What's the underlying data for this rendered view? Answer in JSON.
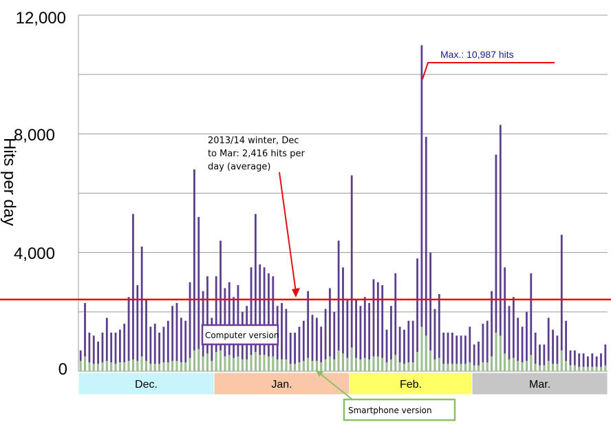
{
  "chart_data": {
    "type": "bar",
    "ylabel": "Hits per day",
    "ylim": [
      0,
      12000
    ],
    "y_ticks": [
      {
        "value": 0,
        "label": "0"
      },
      {
        "value": 4000,
        "label": "4,000"
      },
      {
        "value": 8000,
        "label": "8,000"
      },
      {
        "value": 12000,
        "label": "12,000"
      }
    ],
    "grid": true,
    "months": [
      "Dec.",
      "Jan.",
      "Feb.",
      "Mar."
    ],
    "month_days": [
      31,
      31,
      28,
      31
    ],
    "month_colors": [
      "#c8f4fb",
      "#f9c8a8",
      "#ffff66",
      "#c6c6c6"
    ],
    "series": [
      {
        "name": "Computer version",
        "color": "#5b3f8c",
        "values": [
          700,
          2300,
          1300,
          1200,
          1000,
          1300,
          1800,
          1300,
          1300,
          1400,
          1600,
          2500,
          5300,
          2900,
          4200,
          2400,
          1500,
          1600,
          1300,
          1500,
          1700,
          2200,
          2300,
          1800,
          1700,
          3000,
          6800,
          5200,
          2700,
          3200,
          1800,
          3200,
          4400,
          2800,
          3000,
          2500,
          2900,
          2000,
          2200,
          3500,
          5300,
          3600,
          3500,
          3300,
          3200,
          2200,
          2300,
          2100,
          1300,
          1300,
          1500,
          1700,
          2700,
          1900,
          1800,
          1500,
          2100,
          2800,
          2000,
          4400,
          3500,
          2400,
          6600,
          2400,
          2200,
          2500,
          2300,
          3100,
          3000,
          2900,
          1400,
          2200,
          3300,
          1500,
          1400,
          1700,
          1700,
          3800,
          10987,
          7900,
          4000,
          2100,
          2600,
          1300,
          1300,
          1300,
          1200,
          1200,
          1200,
          1500,
          900,
          1000,
          1600,
          1700,
          2700,
          7300,
          8300,
          3500,
          2200,
          2500,
          1800,
          1500,
          2000,
          3300,
          1300,
          900,
          900,
          1800,
          1400,
          1200,
          4600,
          1700,
          700,
          700,
          600,
          600,
          500,
          600,
          500,
          600,
          900
        ]
      },
      {
        "name": "Smartphone version",
        "color": "#9ac08c",
        "values": [
          350,
          500,
          300,
          250,
          250,
          300,
          350,
          300,
          250,
          300,
          300,
          350,
          400,
          350,
          500,
          350,
          250,
          250,
          250,
          300,
          300,
          350,
          350,
          300,
          300,
          450,
          700,
          750,
          500,
          600,
          350,
          650,
          700,
          500,
          550,
          450,
          500,
          400,
          400,
          550,
          650,
          550,
          550,
          500,
          500,
          400,
          400,
          400,
          250,
          250,
          300,
          350,
          450,
          350,
          350,
          300,
          400,
          500,
          400,
          700,
          600,
          450,
          800,
          450,
          400,
          450,
          400,
          500,
          500,
          450,
          300,
          400,
          550,
          300,
          250,
          300,
          300,
          650,
          1500,
          1200,
          700,
          400,
          450,
          250,
          250,
          250,
          250,
          250,
          250,
          300,
          200,
          200,
          300,
          300,
          500,
          1300,
          1200,
          600,
          400,
          450,
          350,
          300,
          350,
          550,
          250,
          200,
          200,
          350,
          250,
          250,
          700,
          350,
          200,
          200,
          150,
          150,
          150,
          150,
          150,
          150,
          200
        ]
      }
    ],
    "reference_line": {
      "value": 2416,
      "color": "#e01010"
    },
    "annotations": {
      "average": "2013/14 winter, Dec to Mar: 2,416 hits per day (average)",
      "max": "Max.: 10,987 hits",
      "computer": "Computer version",
      "smartphone": "Smartphone version"
    }
  }
}
